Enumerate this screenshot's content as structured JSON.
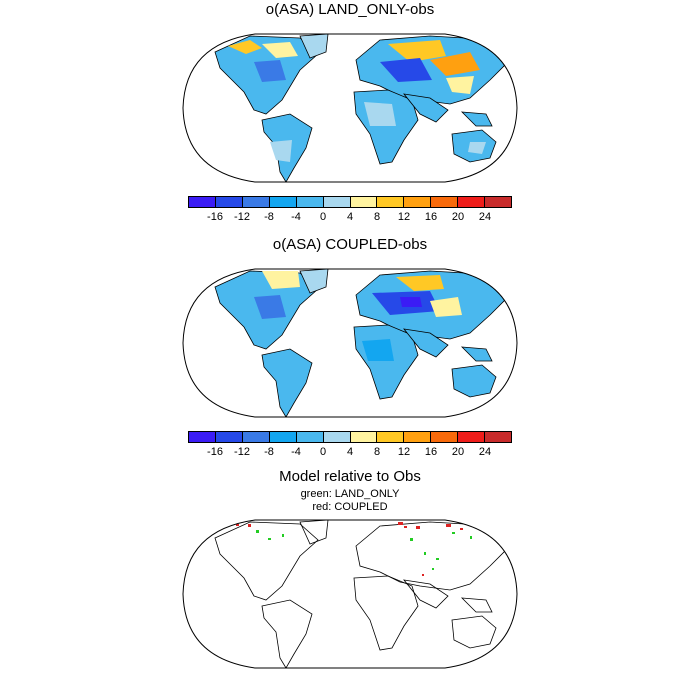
{
  "panels": [
    {
      "title": "o(ASA) LAND_ONLY-obs"
    },
    {
      "title": "o(ASA) COUPLED-obs"
    },
    {
      "title": "Model relative to Obs",
      "legend_green": "green: LAND_ONLY",
      "legend_red": "red: COUPLED"
    }
  ],
  "colorbar": {
    "colors": [
      "#3b1cf5",
      "#2649e8",
      "#3a7ae6",
      "#13a6f0",
      "#4ab8ee",
      "#a9d8ef",
      "#fff3a0",
      "#ffc825",
      "#ffa010",
      "#f86a0b",
      "#ef1d1a",
      "#c82b2b"
    ],
    "labels": [
      "-16",
      "-12",
      "-8",
      "-4",
      "0",
      "4",
      "8",
      "12",
      "16",
      "20",
      "24"
    ]
  },
  "colors": {
    "land_base": "#4ab8ee",
    "green": "#22cc22",
    "red": "#dd2222"
  }
}
